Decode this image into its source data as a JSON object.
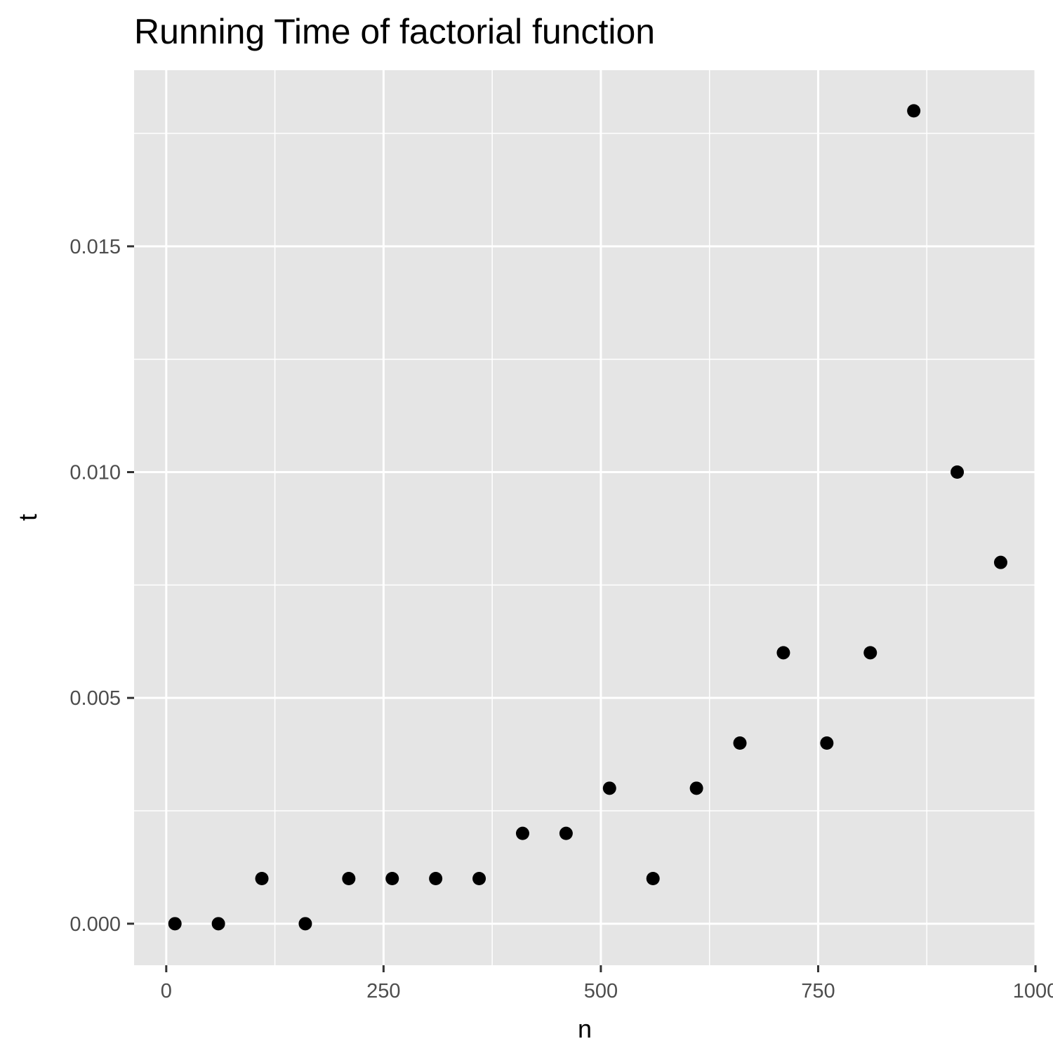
{
  "chart_data": {
    "type": "scatter",
    "title": "Running Time of factorial function",
    "xlabel": "n",
    "ylabel": "t",
    "xlim": [
      -37,
      1000
    ],
    "ylim": [
      -0.00092,
      0.0189
    ],
    "x_ticks": [
      0,
      250,
      500,
      750,
      1000
    ],
    "x_tick_labels": [
      "0",
      "250",
      "500",
      "750",
      "1000"
    ],
    "y_ticks": [
      0,
      0.005,
      0.01,
      0.015
    ],
    "y_tick_labels": [
      "0.000",
      "0.005",
      "0.010",
      "0.015"
    ],
    "x_minor": [
      125,
      375,
      625,
      875
    ],
    "y_minor": [
      0.0025,
      0.0075,
      0.0125,
      0.0175
    ],
    "grid": true,
    "point_color": "#000000",
    "panel_color": "#e5e5e5",
    "points": [
      {
        "x": 10,
        "y": 0
      },
      {
        "x": 60,
        "y": 0
      },
      {
        "x": 110,
        "y": 0.001
      },
      {
        "x": 160,
        "y": 0
      },
      {
        "x": 210,
        "y": 0.001
      },
      {
        "x": 260,
        "y": 0.001
      },
      {
        "x": 310,
        "y": 0.001
      },
      {
        "x": 360,
        "y": 0.001
      },
      {
        "x": 410,
        "y": 0.002
      },
      {
        "x": 460,
        "y": 0.002
      },
      {
        "x": 510,
        "y": 0.003
      },
      {
        "x": 560,
        "y": 0.001
      },
      {
        "x": 610,
        "y": 0.003
      },
      {
        "x": 660,
        "y": 0.004
      },
      {
        "x": 710,
        "y": 0.006
      },
      {
        "x": 760,
        "y": 0.004
      },
      {
        "x": 810,
        "y": 0.006
      },
      {
        "x": 860,
        "y": 0.018
      },
      {
        "x": 910,
        "y": 0.01
      },
      {
        "x": 960,
        "y": 0.008
      }
    ]
  }
}
